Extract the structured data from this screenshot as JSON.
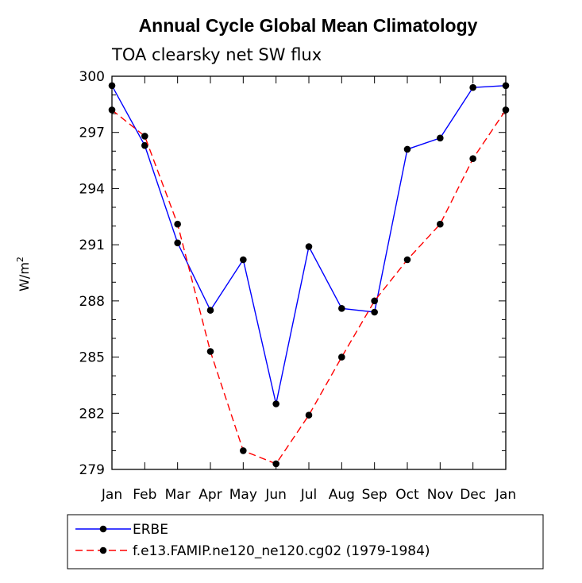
{
  "chart_data": {
    "type": "line",
    "title": "Annual Cycle Global Mean Climatology",
    "subtitle": "TOA clearsky net SW flux",
    "ylabel": "W/m",
    "ylabel_superscript": "2",
    "xlabel": "",
    "categories": [
      "Jan",
      "Feb",
      "Mar",
      "Apr",
      "May",
      "Jun",
      "Jul",
      "Aug",
      "Sep",
      "Oct",
      "Nov",
      "Dec",
      "Jan"
    ],
    "ylim": [
      279,
      300
    ],
    "yticks": [
      "279",
      "282",
      "285",
      "288",
      "291",
      "294",
      "297",
      "300"
    ],
    "grid": false,
    "series": [
      {
        "name": "ERBE",
        "color": "#0000ff",
        "dash": "solid",
        "values": [
          299.5,
          296.3,
          291.1,
          287.5,
          290.2,
          282.5,
          290.9,
          287.6,
          287.4,
          296.1,
          296.7,
          299.4,
          299.5
        ]
      },
      {
        "name": "f.e13.FAMIP.ne120_ne120.cg02 (1979-1984)",
        "color": "#ff0000",
        "dash": "dashed",
        "values": [
          298.2,
          296.8,
          292.1,
          285.3,
          280.0,
          279.3,
          281.9,
          285.0,
          288.0,
          290.2,
          292.1,
          295.6,
          298.2
        ]
      }
    ],
    "legend_placement": "bottom"
  }
}
